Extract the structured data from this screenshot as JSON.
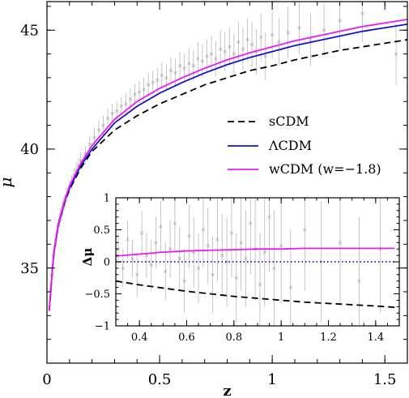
{
  "chart_data": [
    {
      "id": "main",
      "type": "line",
      "title": "",
      "xlabel": "z",
      "ylabel": "μ",
      "xlim": [
        0,
        1.6
      ],
      "ylim": [
        31,
        46.2
      ],
      "xticks": [
        {
          "value": 0,
          "label": "0"
        },
        {
          "value": 0.5,
          "label": "0.5"
        },
        {
          "value": 1,
          "label": "1"
        },
        {
          "value": 1.5,
          "label": "1.5"
        }
      ],
      "yticks": [
        {
          "value": 35,
          "label": "35"
        },
        {
          "value": 40,
          "label": "40"
        },
        {
          "value": 45,
          "label": "45"
        }
      ],
      "legend": {
        "placement": "center-right",
        "entries": [
          {
            "label": "sCDM",
            "color": "#000000",
            "dash": "dashed"
          },
          {
            "label": "ΛCDM",
            "color": "#1515c8",
            "dash": "solid"
          },
          {
            "label": "wCDM (w=−1.8)",
            "color": "#ee1aee",
            "dash": "solid"
          }
        ]
      },
      "series": [
        {
          "name": "sCDM",
          "color": "#000000",
          "dash": "dashed",
          "x": [
            0.01,
            0.03,
            0.05,
            0.08,
            0.1,
            0.15,
            0.2,
            0.3,
            0.4,
            0.5,
            0.6,
            0.7,
            0.8,
            0.9,
            1.0,
            1.1,
            1.2,
            1.3,
            1.4,
            1.5,
            1.6
          ],
          "y": [
            33.2,
            35.6,
            36.8,
            37.8,
            38.3,
            39.2,
            39.9,
            40.8,
            41.4,
            41.9,
            42.3,
            42.7,
            43.0,
            43.3,
            43.5,
            43.75,
            43.95,
            44.15,
            44.3,
            44.45,
            44.6
          ]
        },
        {
          "name": "ΛCDM",
          "color": "#1515c8",
          "dash": "solid",
          "x": [
            0.01,
            0.03,
            0.05,
            0.08,
            0.1,
            0.15,
            0.2,
            0.3,
            0.4,
            0.5,
            0.6,
            0.7,
            0.8,
            0.9,
            1.0,
            1.1,
            1.2,
            1.3,
            1.4,
            1.5,
            1.6
          ],
          "y": [
            33.2,
            35.6,
            36.8,
            37.85,
            38.35,
            39.3,
            40.0,
            41.1,
            41.8,
            42.35,
            42.8,
            43.2,
            43.55,
            43.85,
            44.1,
            44.35,
            44.55,
            44.75,
            44.95,
            45.1,
            45.25
          ]
        },
        {
          "name": "wCDM (w=−1.8)",
          "color": "#ee1aee",
          "dash": "solid",
          "x": [
            0.01,
            0.03,
            0.05,
            0.08,
            0.1,
            0.15,
            0.2,
            0.3,
            0.4,
            0.5,
            0.6,
            0.7,
            0.8,
            0.9,
            1.0,
            1.1,
            1.2,
            1.3,
            1.4,
            1.5,
            1.6
          ],
          "y": [
            33.2,
            35.65,
            36.85,
            37.9,
            38.45,
            39.4,
            40.15,
            41.25,
            42.0,
            42.55,
            43.0,
            43.4,
            43.75,
            44.05,
            44.3,
            44.55,
            44.75,
            44.95,
            45.15,
            45.3,
            45.45
          ]
        }
      ],
      "scatter": {
        "name": "",
        "color": "#a8a8a8",
        "x": [
          0.015,
          0.02,
          0.025,
          0.03,
          0.035,
          0.04,
          0.045,
          0.05,
          0.055,
          0.06,
          0.065,
          0.07,
          0.075,
          0.08,
          0.09,
          0.1,
          0.11,
          0.12,
          0.13,
          0.14,
          0.15,
          0.17,
          0.19,
          0.21,
          0.23,
          0.25,
          0.27,
          0.29,
          0.31,
          0.33,
          0.35,
          0.37,
          0.39,
          0.41,
          0.43,
          0.45,
          0.47,
          0.49,
          0.51,
          0.53,
          0.55,
          0.57,
          0.59,
          0.61,
          0.63,
          0.65,
          0.67,
          0.69,
          0.71,
          0.73,
          0.75,
          0.77,
          0.79,
          0.81,
          0.83,
          0.85,
          0.87,
          0.89,
          0.91,
          0.93,
          0.95,
          0.97,
          1.0,
          1.03,
          1.07,
          1.12,
          1.17,
          1.23,
          1.3,
          1.4,
          1.55
        ],
        "y": [
          34.1,
          34.7,
          35.1,
          35.5,
          35.9,
          36.2,
          36.5,
          36.8,
          37.0,
          37.2,
          37.3,
          37.5,
          37.7,
          37.8,
          38.1,
          38.4,
          38.6,
          38.9,
          39.1,
          39.3,
          39.5,
          39.8,
          40.2,
          40.5,
          40.8,
          41.0,
          41.3,
          41.5,
          41.6,
          41.8,
          41.9,
          42.1,
          42.3,
          42.4,
          42.5,
          42.7,
          42.8,
          42.9,
          43.1,
          43.0,
          43.3,
          43.2,
          43.5,
          43.4,
          43.6,
          43.5,
          43.8,
          43.7,
          43.9,
          44.0,
          43.8,
          44.2,
          44.1,
          44.3,
          44.0,
          44.5,
          44.2,
          44.6,
          44.4,
          44.1,
          44.7,
          43.9,
          44.8,
          44.5,
          44.9,
          45.1,
          44.6,
          45.0,
          45.4,
          45.7,
          44.0
        ],
        "err": [
          0.3,
          0.3,
          0.3,
          0.3,
          0.3,
          0.3,
          0.3,
          0.3,
          0.3,
          0.3,
          0.3,
          0.3,
          0.3,
          0.3,
          0.3,
          0.3,
          0.3,
          0.3,
          0.35,
          0.35,
          0.35,
          0.35,
          0.35,
          0.4,
          0.4,
          0.4,
          0.4,
          0.4,
          0.4,
          0.4,
          0.45,
          0.45,
          0.45,
          0.45,
          0.5,
          0.5,
          0.5,
          0.5,
          0.55,
          0.55,
          0.55,
          0.6,
          0.6,
          0.6,
          0.65,
          0.65,
          0.7,
          0.7,
          0.7,
          0.75,
          0.75,
          0.8,
          0.8,
          0.8,
          0.85,
          0.85,
          0.9,
          0.9,
          0.95,
          0.95,
          1.0,
          1.0,
          1.0,
          1.0,
          1.1,
          1.1,
          1.1,
          1.1,
          1.2,
          1.2,
          1.3
        ]
      }
    },
    {
      "id": "inset",
      "type": "line",
      "title": "",
      "xlabel": "",
      "ylabel": "Δμ",
      "xlim": [
        0.3,
        1.5
      ],
      "ylim": [
        -1,
        1
      ],
      "xticks": [
        {
          "value": 0.4,
          "label": "0.4"
        },
        {
          "value": 0.6,
          "label": "0.6"
        },
        {
          "value": 0.8,
          "label": "0.8"
        },
        {
          "value": 1.0,
          "label": "1"
        },
        {
          "value": 1.2,
          "label": "1.2"
        },
        {
          "value": 1.4,
          "label": "1.4"
        }
      ],
      "yticks": [
        {
          "value": -1,
          "label": "−1"
        },
        {
          "value": -0.5,
          "label": "−0.5"
        },
        {
          "value": 0,
          "label": "0"
        },
        {
          "value": 0.5,
          "label": "0.5"
        },
        {
          "value": 1,
          "label": "1"
        }
      ],
      "series": [
        {
          "name": "sCDM",
          "color": "#000000",
          "dash": "dashed",
          "x": [
            0.3,
            0.4,
            0.5,
            0.6,
            0.7,
            0.8,
            0.9,
            1.0,
            1.1,
            1.2,
            1.3,
            1.4,
            1.48
          ],
          "y": [
            -0.3,
            -0.36,
            -0.41,
            -0.46,
            -0.5,
            -0.54,
            -0.57,
            -0.6,
            -0.63,
            -0.65,
            -0.67,
            -0.69,
            -0.71
          ]
        },
        {
          "name": "ΛCDM",
          "color": "#1515c8",
          "dash": "dotted",
          "x": [
            0.3,
            1.48
          ],
          "y": [
            0,
            0
          ]
        },
        {
          "name": "wCDM (w=−1.8)",
          "color": "#ee1aee",
          "dash": "solid",
          "x": [
            0.3,
            0.4,
            0.5,
            0.6,
            0.7,
            0.8,
            0.9,
            1.0,
            1.1,
            1.2,
            1.3,
            1.4,
            1.48
          ],
          "y": [
            0.09,
            0.12,
            0.15,
            0.17,
            0.18,
            0.19,
            0.2,
            0.2,
            0.21,
            0.21,
            0.21,
            0.21,
            0.21
          ]
        }
      ],
      "scatter": {
        "name": "",
        "color": "#a8a8a8",
        "x": [
          0.31,
          0.33,
          0.35,
          0.37,
          0.39,
          0.41,
          0.43,
          0.45,
          0.47,
          0.49,
          0.51,
          0.53,
          0.55,
          0.57,
          0.59,
          0.61,
          0.63,
          0.65,
          0.67,
          0.69,
          0.71,
          0.73,
          0.75,
          0.77,
          0.79,
          0.81,
          0.83,
          0.85,
          0.87,
          0.89,
          0.91,
          0.93,
          0.95,
          0.97,
          1.0,
          1.04,
          1.1,
          1.17,
          1.25,
          1.33,
          1.42
        ],
        "y": [
          0.2,
          -0.1,
          0.35,
          0.05,
          -0.2,
          0.45,
          0.1,
          -0.05,
          0.3,
          0.55,
          -0.15,
          0.2,
          0.6,
          0.05,
          -0.3,
          0.4,
          0.15,
          -0.1,
          0.5,
          0.25,
          -0.2,
          0.35,
          0.1,
          0.0,
          0.45,
          -0.25,
          0.3,
          0.05,
          0.6,
          0.2,
          -0.35,
          0.15,
          0.7,
          -0.1,
          0.25,
          -0.4,
          0.5,
          0.0,
          0.3,
          -0.3,
          0.2
        ],
        "err": [
          0.25,
          0.3,
          0.3,
          0.3,
          0.35,
          0.35,
          0.35,
          0.4,
          0.4,
          0.4,
          0.45,
          0.45,
          0.45,
          0.5,
          0.5,
          0.5,
          0.55,
          0.55,
          0.6,
          0.6,
          0.6,
          0.65,
          0.65,
          0.7,
          0.7,
          0.7,
          0.75,
          0.75,
          0.8,
          0.8,
          0.8,
          0.85,
          0.85,
          0.9,
          0.9,
          0.9,
          0.95,
          0.95,
          1.0,
          1.0,
          1.0
        ]
      }
    }
  ]
}
